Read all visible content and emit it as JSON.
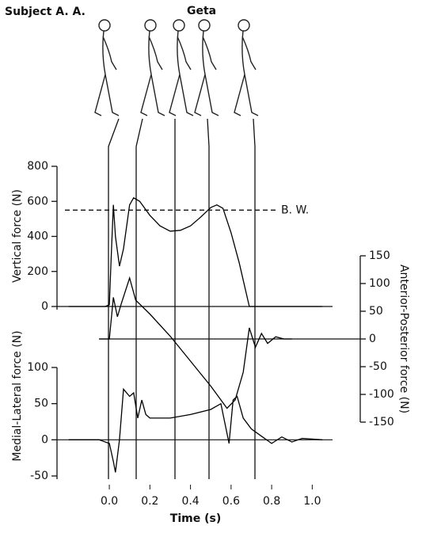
{
  "subject": "Subject A. A.",
  "condition": "Geta",
  "chart_data": [
    {
      "type": "line",
      "ylabel": "Vertical force (N)",
      "x": [
        -0.2,
        -0.1,
        -0.02,
        0,
        0.01,
        0.02,
        0.03,
        0.05,
        0.07,
        0.1,
        0.12,
        0.15,
        0.2,
        0.25,
        0.3,
        0.35,
        0.4,
        0.45,
        0.5,
        0.53,
        0.56,
        0.6,
        0.64,
        0.69,
        0.8,
        1.05
      ],
      "values": [
        0,
        0,
        0,
        10,
        300,
        580,
        400,
        230,
        330,
        580,
        620,
        600,
        520,
        460,
        430,
        435,
        460,
        510,
        565,
        580,
        560,
        420,
        250,
        0,
        0,
        0
      ],
      "color": "#000000",
      "ylim": [
        0,
        800
      ],
      "yticks": [
        0,
        200,
        400,
        600,
        800
      ],
      "reference_line": {
        "value": 550,
        "label": "B. W."
      }
    },
    {
      "type": "line",
      "ylabel": "Anterior-Posterior force (N)",
      "axis_side": "right",
      "x": [
        -0.05,
        0,
        0.02,
        0.04,
        0.06,
        0.1,
        0.13,
        0.2,
        0.3,
        0.4,
        0.5,
        0.58,
        0.62,
        0.66,
        0.69,
        0.72,
        0.75,
        0.78,
        0.82,
        0.86,
        0.9
      ],
      "values": [
        0,
        0,
        75,
        40,
        65,
        110,
        70,
        45,
        5,
        -40,
        -85,
        -125,
        -110,
        -60,
        20,
        -15,
        10,
        -8,
        4,
        0,
        0
      ],
      "color": "#000000",
      "ylim": [
        -150,
        150
      ],
      "yticks": [
        -150,
        -100,
        -50,
        0,
        50,
        100,
        150
      ]
    },
    {
      "type": "line",
      "ylabel": "Medial-Lateral force (N)",
      "xlabel": "Time (s)",
      "x": [
        -0.2,
        -0.05,
        0,
        0.02,
        0.03,
        0.05,
        0.07,
        0.1,
        0.12,
        0.14,
        0.16,
        0.18,
        0.2,
        0.3,
        0.4,
        0.5,
        0.55,
        0.59,
        0.61,
        0.63,
        0.66,
        0.7,
        0.75,
        0.8,
        0.85,
        0.9,
        0.95,
        1.05
      ],
      "values": [
        0,
        0,
        -5,
        -30,
        -45,
        0,
        70,
        60,
        65,
        30,
        55,
        35,
        30,
        30,
        35,
        42,
        50,
        -5,
        55,
        60,
        30,
        15,
        5,
        -5,
        4,
        -3,
        2,
        0
      ],
      "color": "#000000",
      "ylim": [
        -50,
        100
      ],
      "yticks": [
        -50,
        0,
        50,
        100
      ],
      "xlim": [
        -0.25,
        1.1
      ],
      "xticks": [
        {
          "value": 0,
          "label": "0.0"
        },
        0.2,
        0.4,
        0.6,
        0.8,
        {
          "value": 1,
          "label": "1.0"
        }
      ]
    }
  ]
}
